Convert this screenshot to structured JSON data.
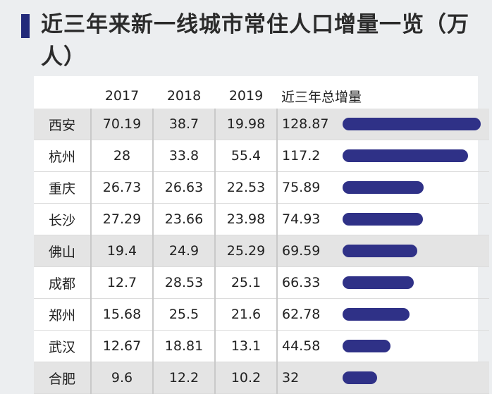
{
  "title": "近三年来新一线城市常住人口增量一览（万人）",
  "colors": {
    "bar": "#2f3187",
    "title_accent": "#232a7a",
    "shaded_row": "#e4e4e4"
  },
  "headers": [
    "",
    "2017",
    "2018",
    "2019",
    "近三年总增量"
  ],
  "chart_data": {
    "type": "table",
    "title": "近三年来新一线城市常住人口增量一览（万人）",
    "columns": [
      "2017",
      "2018",
      "2019",
      "近三年总增量"
    ],
    "bar_column": "近三年总增量",
    "rows": [
      {
        "city": "西安",
        "y2017": "70.19",
        "y2018": "38.7",
        "y2019": "19.98",
        "total": "128.87",
        "total_value": 128.87,
        "shaded": true
      },
      {
        "city": "杭州",
        "y2017": "28",
        "y2018": "33.8",
        "y2019": "55.4",
        "total": "117.2",
        "total_value": 117.2,
        "shaded": false
      },
      {
        "city": "重庆",
        "y2017": "26.73",
        "y2018": "26.63",
        "y2019": "22.53",
        "total": "75.89",
        "total_value": 75.89,
        "shaded": false
      },
      {
        "city": "长沙",
        "y2017": "27.29",
        "y2018": "23.66",
        "y2019": "23.98",
        "total": "74.93",
        "total_value": 74.93,
        "shaded": false
      },
      {
        "city": "佛山",
        "y2017": "19.4",
        "y2018": "24.9",
        "y2019": "25.29",
        "total": "69.59",
        "total_value": 69.59,
        "shaded": true
      },
      {
        "city": "成都",
        "y2017": "12.7",
        "y2018": "28.53",
        "y2019": "25.1",
        "total": "66.33",
        "total_value": 66.33,
        "shaded": false
      },
      {
        "city": "郑州",
        "y2017": "15.68",
        "y2018": "25.5",
        "y2019": "21.6",
        "total": "62.78",
        "total_value": 62.78,
        "shaded": false
      },
      {
        "city": "武汉",
        "y2017": "12.67",
        "y2018": "18.81",
        "y2019": "13.1",
        "total": "44.58",
        "total_value": 44.58,
        "shaded": false
      },
      {
        "city": "合肥",
        "y2017": "9.6",
        "y2018": "12.2",
        "y2019": "10.2",
        "total": "32",
        "total_value": 32,
        "shaded": true
      }
    ]
  }
}
